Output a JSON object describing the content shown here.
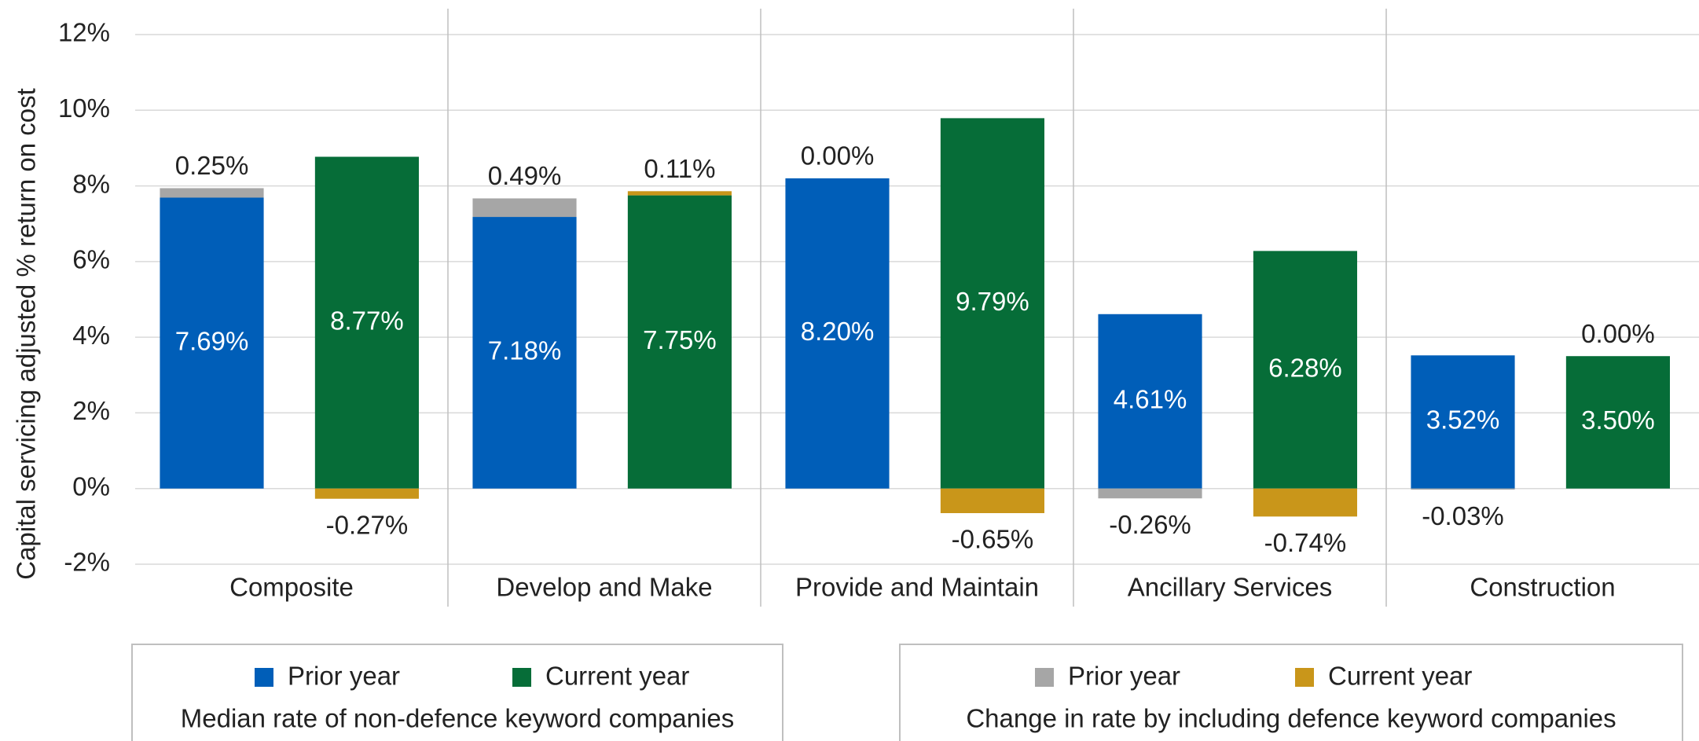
{
  "chart_data": {
    "type": "bar",
    "stacked": true,
    "y_label": "Capital servicing adjusted % return on cost",
    "categories": [
      "Composite",
      "Develop and Make",
      "Provide and Maintain",
      "Ancillary Services",
      "Construction"
    ],
    "ylim": [
      -2,
      12
    ],
    "yticks": [
      {
        "value": -2,
        "label": "-2%"
      },
      {
        "value": 0,
        "label": "0%"
      },
      {
        "value": 2,
        "label": "2%"
      },
      {
        "value": 4,
        "label": "4%"
      },
      {
        "value": 6,
        "label": "6%"
      },
      {
        "value": 8,
        "label": "8%"
      },
      {
        "value": 10,
        "label": "10%"
      },
      {
        "value": 12,
        "label": "12%"
      }
    ],
    "grid": true,
    "series_groups": [
      {
        "title": "Median rate of non-defence keyword companies",
        "series": [
          {
            "name": "Prior year",
            "color": "#005eb8",
            "values": [
              7.69,
              7.18,
              8.2,
              4.61,
              3.52
            ],
            "value_labels": [
              "7.69%",
              "7.18%",
              "8.20%",
              "4.61%",
              "3.52%"
            ]
          },
          {
            "name": "Current year",
            "color": "#066d38",
            "values": [
              8.77,
              7.75,
              9.79,
              6.28,
              3.5
            ],
            "value_labels": [
              "8.77%",
              "7.75%",
              "9.79%",
              "6.28%",
              "3.50%"
            ]
          }
        ]
      },
      {
        "title": "Change in rate by including defence keyword companies",
        "series": [
          {
            "name": "Prior year",
            "color": "#a6a6a6",
            "values": [
              0.25,
              0.49,
              0.0,
              -0.26,
              -0.03
            ],
            "value_labels": [
              "0.25%",
              "0.49%",
              "0.00%",
              "-0.26%",
              "-0.03%"
            ]
          },
          {
            "name": "Current year",
            "color": "#c9961a",
            "values": [
              -0.27,
              0.11,
              -0.65,
              -0.74,
              0.0
            ],
            "value_labels": [
              "-0.27%",
              "0.11%",
              "-0.65%",
              "-0.74%",
              "0.00%"
            ]
          }
        ]
      }
    ]
  }
}
